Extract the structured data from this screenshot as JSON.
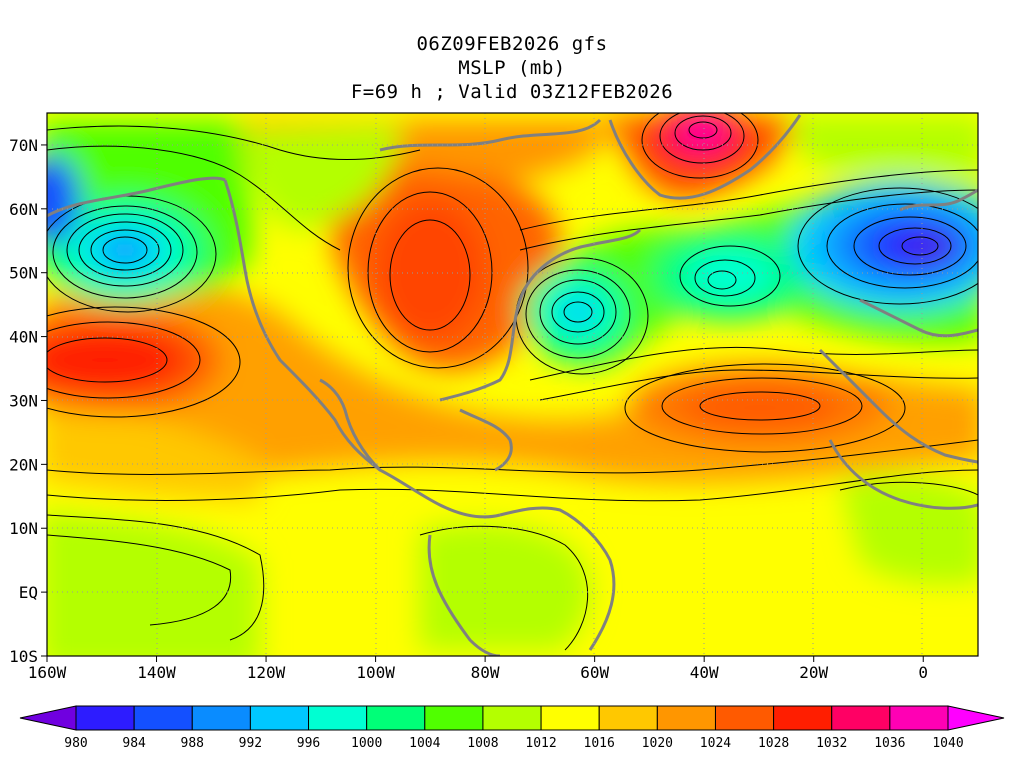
{
  "header": {
    "line1": "06Z09FEB2026 gfs",
    "line2": "MSLP (mb)",
    "line3": "F=69 h ; Valid 03Z12FEB2026"
  },
  "map": {
    "lon_ticks": [
      "160W",
      "140W",
      "120W",
      "100W",
      "80W",
      "60W",
      "40W",
      "20W",
      "0"
    ],
    "lat_ticks": [
      "70N",
      "60N",
      "50N",
      "40N",
      "30N",
      "20N",
      "10N",
      "EQ",
      "10S"
    ],
    "lon_values": [
      -160,
      -140,
      -120,
      -100,
      -80,
      -60,
      -40,
      -20,
      0
    ],
    "lat_values": [
      70,
      60,
      50,
      40,
      30,
      20,
      10,
      0,
      -10
    ],
    "lon_range": [
      -160,
      10
    ],
    "lat_range": [
      -10,
      75
    ],
    "background_color": "#ffff00",
    "coastline_color": "#808080",
    "contour_color": "#000000",
    "pressure_systems": [
      {
        "kind": "low",
        "lon": -145,
        "lat": 53,
        "color": "#3c64ff"
      },
      {
        "kind": "high",
        "lon": -148,
        "lat": 37,
        "color": "#ff0000"
      },
      {
        "kind": "high",
        "lon": -90,
        "lat": 50,
        "color": "#ff3300"
      },
      {
        "kind": "low",
        "lon": -63,
        "lat": 44,
        "color": "#00e6c8"
      },
      {
        "kind": "low",
        "lon": -35,
        "lat": 49,
        "color": "#00e6c8"
      },
      {
        "kind": "high",
        "lon": -40,
        "lat": 72,
        "color": "#ff00d0"
      },
      {
        "kind": "low",
        "lon": -10,
        "lat": 54,
        "color": "#4b00ff"
      },
      {
        "kind": "high",
        "lon": -35,
        "lat": 30,
        "color": "#ff5500"
      }
    ]
  },
  "colorbar": {
    "labels": [
      "980",
      "984",
      "988",
      "992",
      "996",
      "1000",
      "1004",
      "1008",
      "1012",
      "1016",
      "1020",
      "1024",
      "1028",
      "1032",
      "1036",
      "1040"
    ],
    "colors": [
      "#7000e0",
      "#2d1cff",
      "#1450ff",
      "#0a8cff",
      "#00c8ff",
      "#00ffd2",
      "#00ff78",
      "#50ff00",
      "#b4ff00",
      "#ffff00",
      "#ffc800",
      "#ff9600",
      "#ff5a00",
      "#ff1e00",
      "#ff0064",
      "#ff00b4",
      "#ff00ff"
    ]
  }
}
